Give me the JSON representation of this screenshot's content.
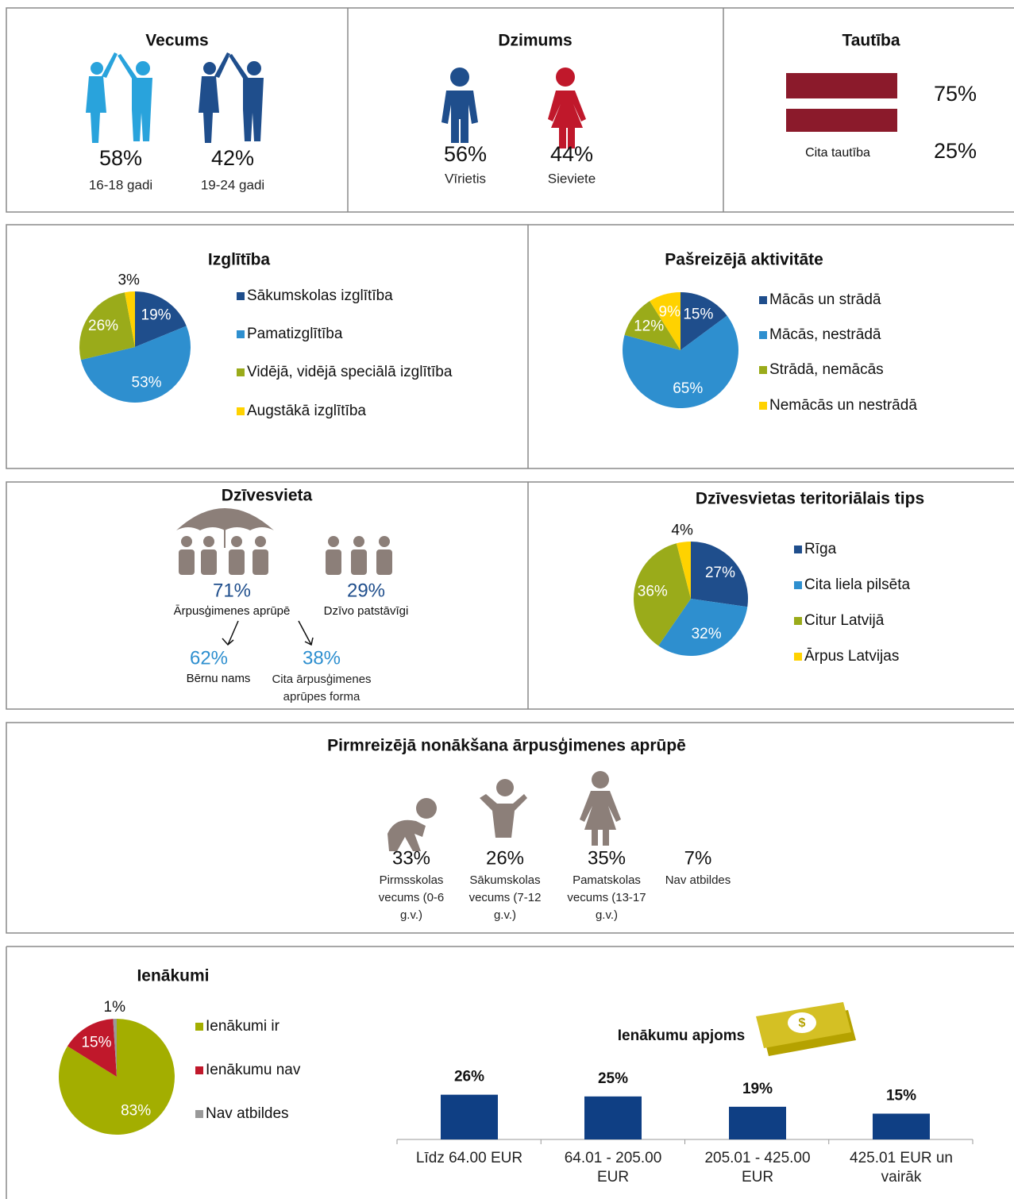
{
  "vecums": {
    "title": "Vecums",
    "groups": [
      {
        "value": "58%",
        "label": "16-18 gadi"
      },
      {
        "value": "42%",
        "label": "19-24 gadi"
      }
    ]
  },
  "dzimums": {
    "title": "Dzimums",
    "groups": [
      {
        "value": "56%",
        "label": "Vīrietis"
      },
      {
        "value": "44%",
        "label": "Sieviete"
      }
    ]
  },
  "tautiba": {
    "title": "Tautība",
    "groups": [
      {
        "value": "75%"
      },
      {
        "value": "25%",
        "label": "Cita tautība"
      }
    ]
  },
  "dzivesvieta": {
    "title": "Dzīvesvieta",
    "groups": [
      {
        "value": "71%",
        "label": "Ārpusģimenes aprūpē"
      },
      {
        "value": "29%",
        "label": "Dzīvo patstāvīgi"
      }
    ],
    "subgroups": [
      {
        "value": "62%",
        "label": "Bērnu nams"
      },
      {
        "value": "38%",
        "label": "Cita ārpusģimenes aprūpes forma"
      }
    ]
  },
  "pirmreizeja": {
    "title": "Pirmreizējā nonākšana ārpusģimenes aprūpē",
    "groups": [
      {
        "value": "33%",
        "label": "Pirmsskolas vecums (0-6 g.v.)"
      },
      {
        "value": "26%",
        "label": "Sākumskolas vecums (7-12 g.v.)"
      },
      {
        "value": "35%",
        "label": "Pamatskolas vecums (13-17 g.v.)"
      },
      {
        "value": "7%",
        "label": "Nav atbildes"
      }
    ]
  },
  "chart_data": [
    {
      "type": "pie",
      "title": "Izglītība",
      "categories": [
        "Sākumskolas izglītība",
        "Pamatizglītība",
        "Vidējā, vidējā speciālā izglītība",
        "Augstākā izglītība"
      ],
      "values": [
        19,
        53,
        26,
        3
      ],
      "value_labels": [
        "19%",
        "53%",
        "26%",
        "3%"
      ],
      "colors": [
        "#1f4e8c",
        "#2e8fcf",
        "#9aab1a",
        "#ffd200"
      ]
    },
    {
      "type": "pie",
      "title": "Pašreizējā aktivitāte",
      "categories": [
        "Mācās un strādā",
        "Mācās, nestrādā",
        "Strādā, nemācās",
        "Nemācās un nestrādā"
      ],
      "values": [
        15,
        65,
        12,
        9
      ],
      "value_labels": [
        "15%",
        "65%",
        "12%",
        "9%"
      ],
      "colors": [
        "#1f4e8c",
        "#2e8fcf",
        "#9aab1a",
        "#ffd200"
      ]
    },
    {
      "type": "pie",
      "title": "Dzīvesvietas teritoriālais tips",
      "categories": [
        "Rīga",
        "Cita liela pilsēta",
        "Citur Latvijā",
        "Ārpus Latvijas"
      ],
      "values": [
        27,
        32,
        36,
        4
      ],
      "value_labels": [
        "27%",
        "32%",
        "36%",
        "4%"
      ],
      "colors": [
        "#1f4e8c",
        "#2e8fcf",
        "#9aab1a",
        "#ffd200"
      ]
    },
    {
      "type": "pie",
      "title": "Ienākumi",
      "categories": [
        "Ienākumi ir",
        "Ienākumu nav",
        "Nav atbildes"
      ],
      "values": [
        83,
        15,
        1
      ],
      "value_labels": [
        "83%",
        "15%",
        "1%"
      ],
      "colors": [
        "#a3ae00",
        "#c0182b",
        "#999999"
      ]
    },
    {
      "type": "bar",
      "title": "Ienākumu apjoms",
      "categories": [
        "Līdz 64.00 EUR",
        "64.01 - 205.00 EUR",
        "205.01 - 425.00 EUR",
        "425.01 EUR un vairāk"
      ],
      "values": [
        26,
        25,
        19,
        15
      ],
      "value_labels": [
        "26%",
        "25%",
        "19%",
        "15%"
      ],
      "color": "#0f3f84",
      "ylim": [
        0,
        30
      ]
    }
  ]
}
